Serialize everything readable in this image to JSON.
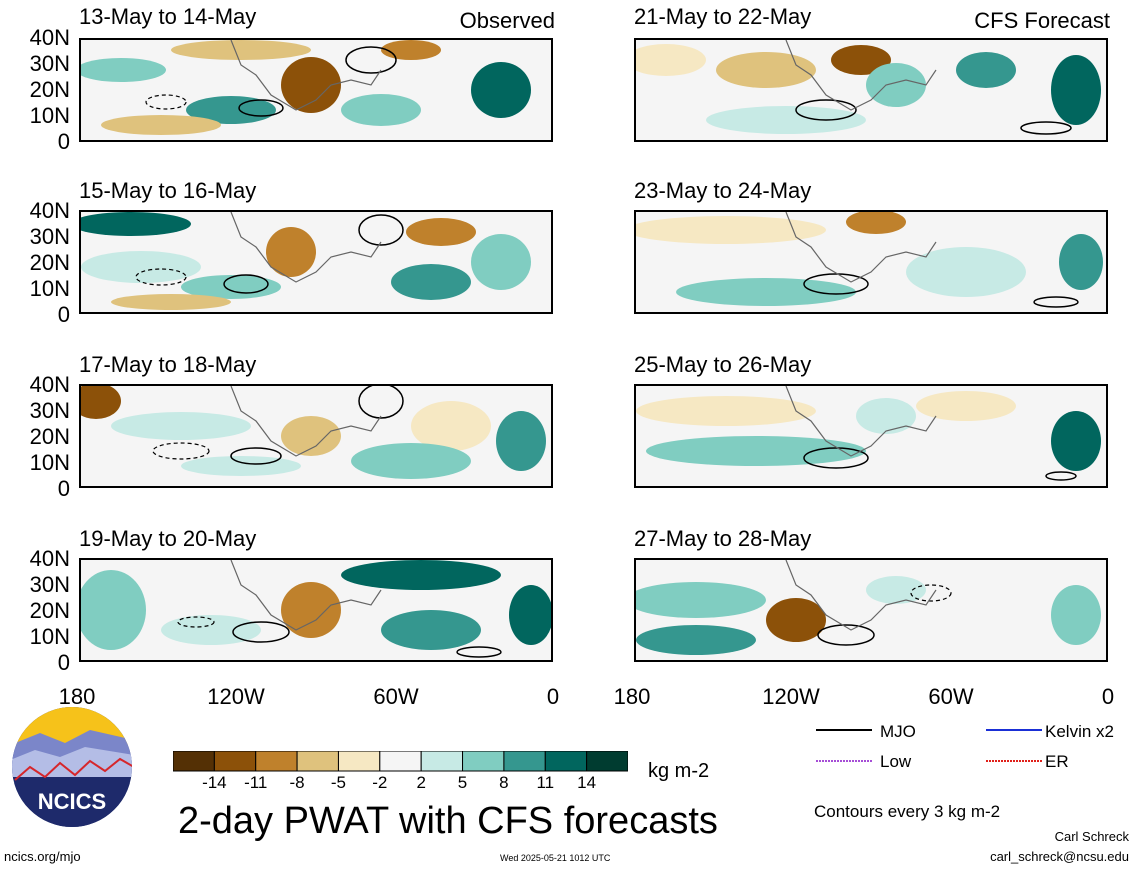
{
  "panels": [
    {
      "id": "p1",
      "title": "13-May to 14-May",
      "tag": "Observed"
    },
    {
      "id": "p2",
      "title": "15-May to 16-May",
      "tag": ""
    },
    {
      "id": "p3",
      "title": "17-May to 18-May",
      "tag": ""
    },
    {
      "id": "p4",
      "title": "19-May to 20-May",
      "tag": ""
    },
    {
      "id": "p5",
      "title": "21-May to 22-May",
      "tag": "CFS Forecast"
    },
    {
      "id": "p6",
      "title": "23-May to 24-May",
      "tag": ""
    },
    {
      "id": "p7",
      "title": "25-May to 26-May",
      "tag": ""
    },
    {
      "id": "p8",
      "title": "27-May to 28-May",
      "tag": ""
    }
  ],
  "axes": {
    "lat_labels": [
      "40N",
      "30N",
      "20N",
      "10N",
      "0"
    ],
    "lon_labels": [
      "180",
      "120W",
      "60W",
      "0"
    ]
  },
  "colorbar": {
    "labels": [
      "-14",
      "-11",
      "-8",
      "-5",
      "-2",
      "2",
      "5",
      "8",
      "11",
      "14"
    ],
    "colors": [
      "#543005",
      "#8c5109",
      "#bf812c",
      "#dfc27d",
      "#f6e8c3",
      "#f5f5f5",
      "#c7eae5",
      "#80cdc1",
      "#35978f",
      "#01665e",
      "#003c30"
    ],
    "units": "kg m-2"
  },
  "legend": {
    "mjo": "MJO",
    "kelvin": "Kelvin x2",
    "low": "Low",
    "er": "ER",
    "mjo_color": "#000000",
    "kelvin_color": "#1a2fd6",
    "low_color": "#a64ed6",
    "er_color": "#e0201a"
  },
  "contours_note": "Contours every 3 kg m-2",
  "main_title": "2-day PWAT with CFS forecasts",
  "logo_text": "NCICS",
  "url": "ncics.org/mjo",
  "timestamp": "Wed 2025-05-21 1012 UTC",
  "author": "Carl Schreck",
  "email": "carl_schreck@ncsu.edu"
}
